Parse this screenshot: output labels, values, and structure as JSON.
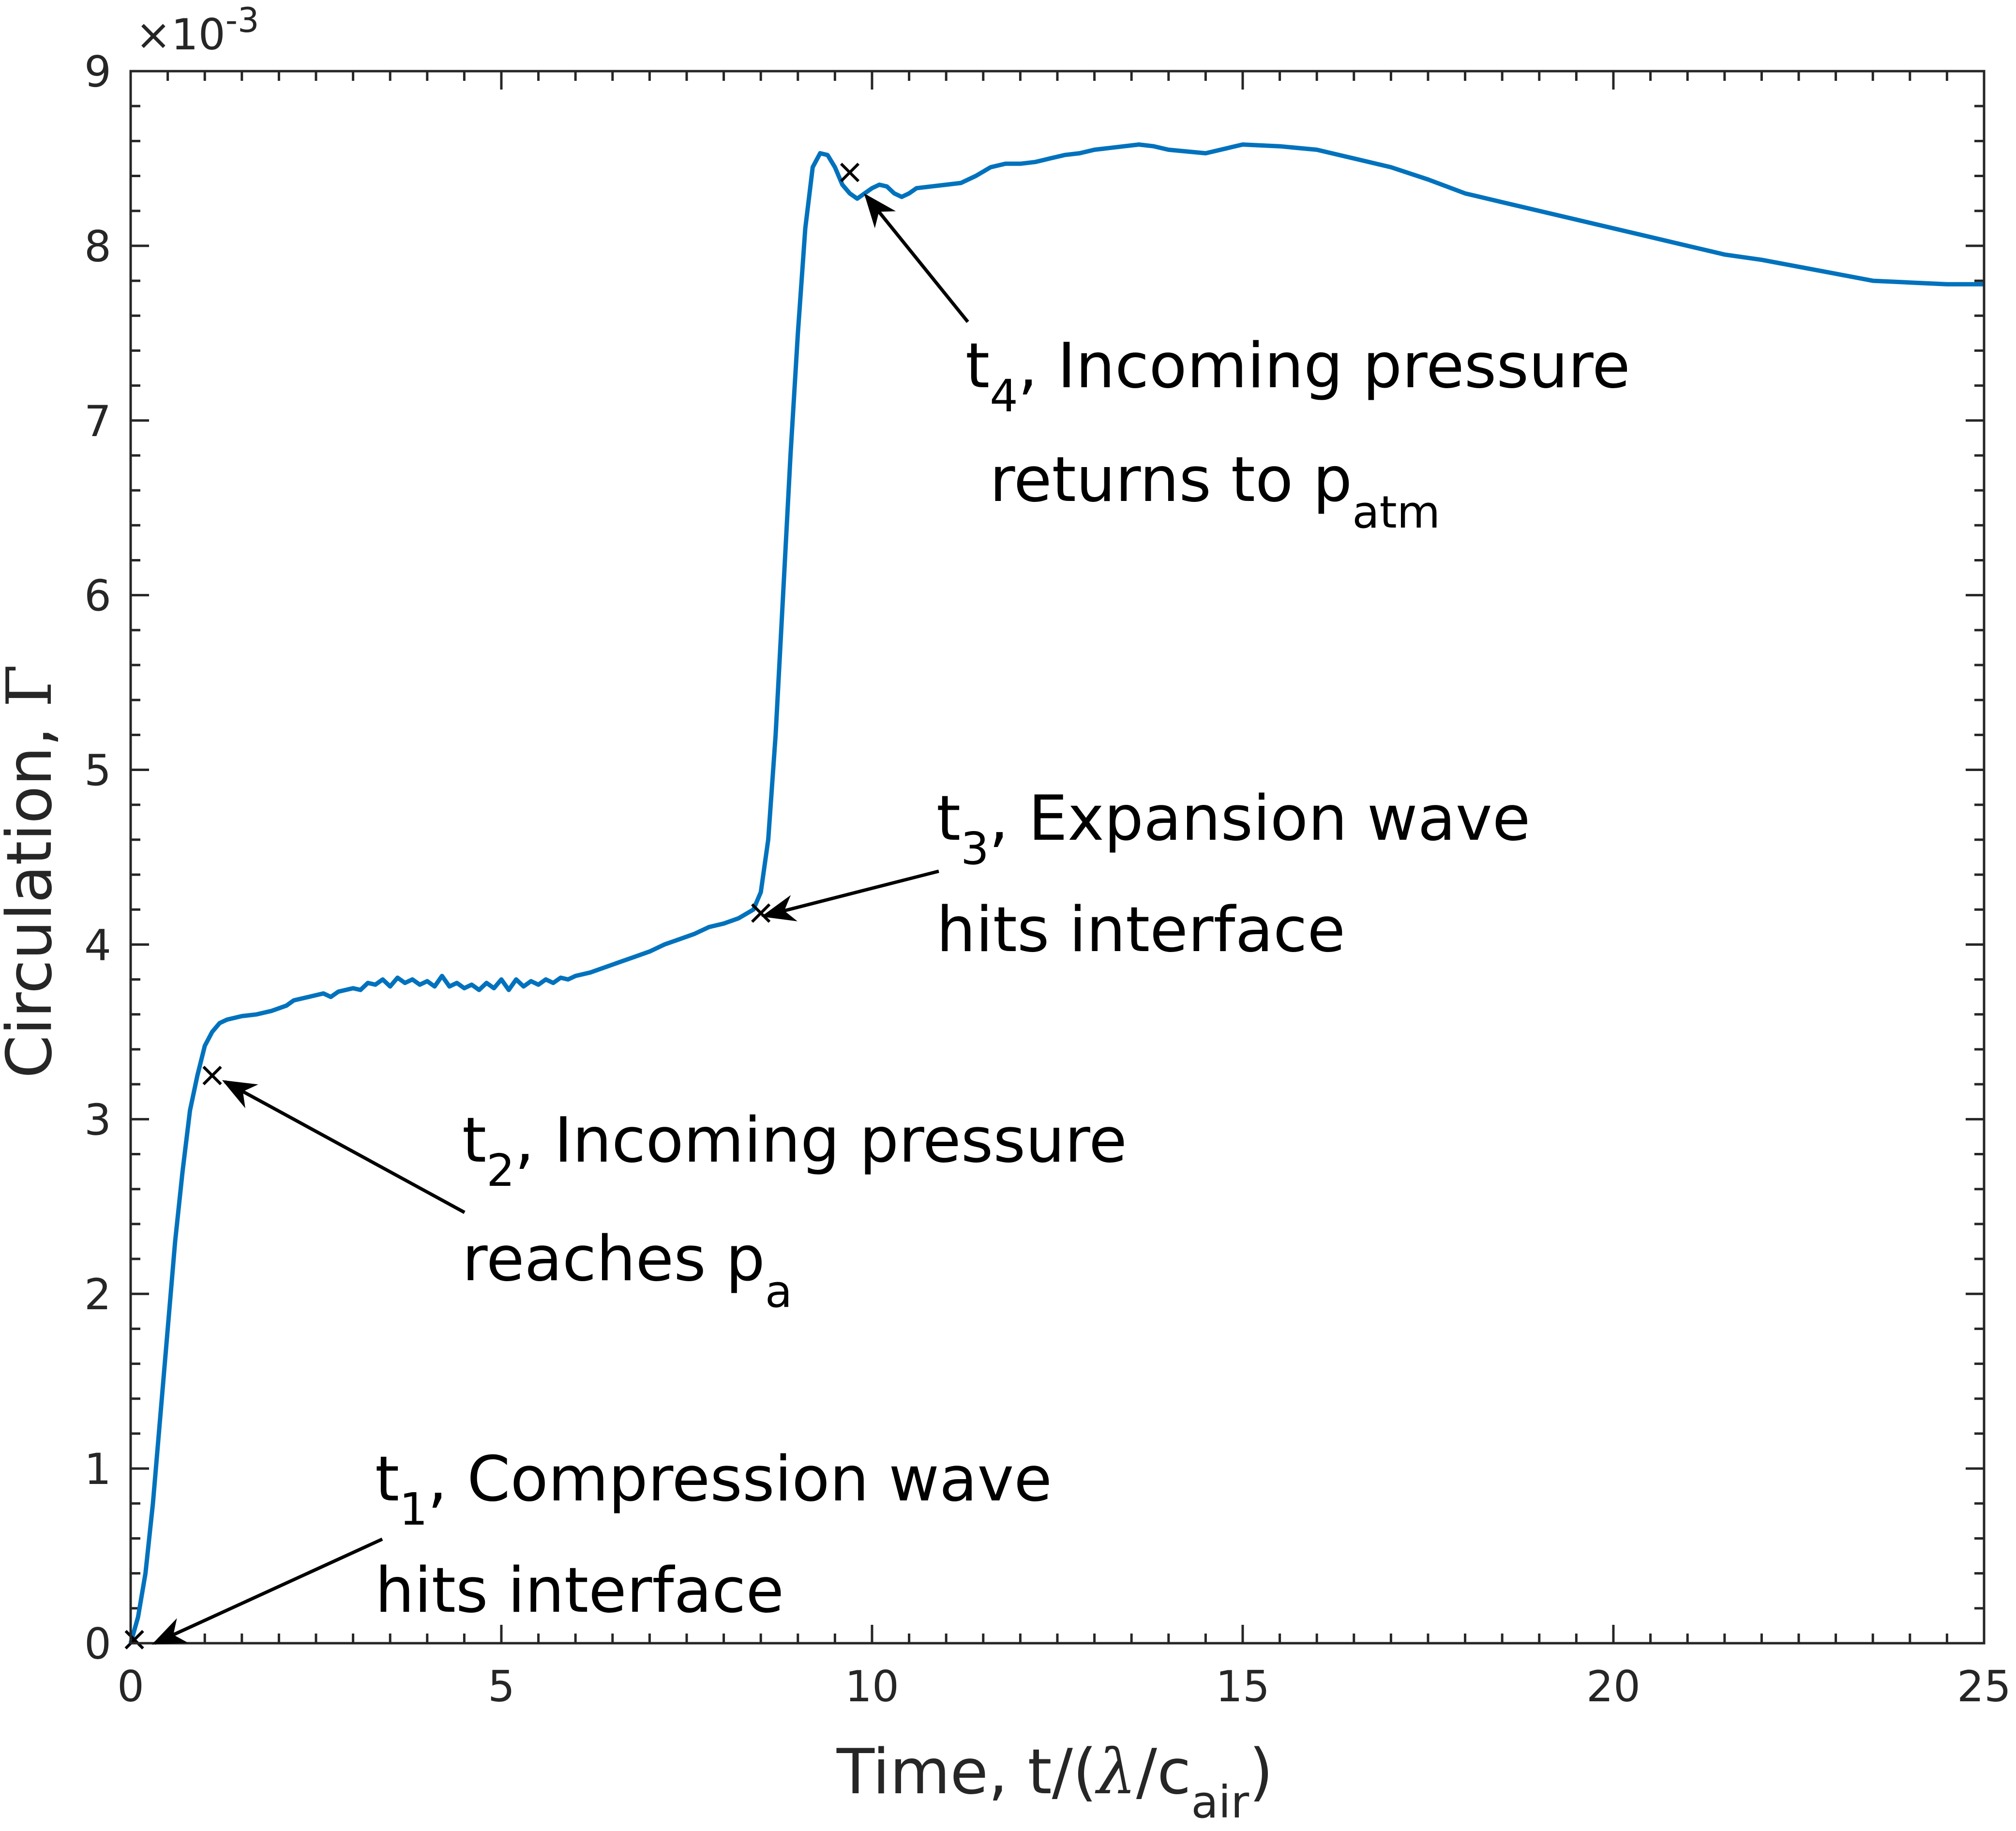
{
  "chart_data": {
    "type": "line",
    "xlabel": {
      "main": "Time, t/(",
      "lambda": "λ",
      "mid": "/c",
      "sub": "air",
      "close": ")"
    },
    "ylabel": {
      "main": "Circulation, ",
      "symbol": "Γ"
    },
    "xlim": [
      0,
      25
    ],
    "ylim": [
      0,
      9
    ],
    "y_multiplier": "×10",
    "y_multiplier_exponent": "-3",
    "xticks": [
      0,
      5,
      10,
      15,
      20,
      25
    ],
    "yticks": [
      0,
      1,
      2,
      3,
      4,
      5,
      6,
      7,
      8,
      9
    ],
    "grid": false,
    "box": true,
    "series": [
      {
        "color": "#0072BD",
        "x": [
          0,
          0.1,
          0.2,
          0.3,
          0.4,
          0.5,
          0.6,
          0.7,
          0.8,
          0.9,
          1.0,
          1.1,
          1.2,
          1.3,
          1.4,
          1.5,
          1.7,
          1.9,
          2.1,
          2.2,
          2.4,
          2.6,
          2.7,
          2.8,
          3.0,
          3.1,
          3.2,
          3.3,
          3.4,
          3.5,
          3.6,
          3.7,
          3.8,
          3.9,
          4.0,
          4.1,
          4.2,
          4.3,
          4.4,
          4.5,
          4.6,
          4.7,
          4.8,
          4.9,
          5.0,
          5.1,
          5.2,
          5.3,
          5.4,
          5.5,
          5.6,
          5.7,
          5.8,
          5.9,
          6.0,
          6.2,
          6.4,
          6.6,
          6.8,
          7.0,
          7.2,
          7.4,
          7.6,
          7.8,
          8.0,
          8.2,
          8.4,
          8.5,
          8.6,
          8.7,
          8.8,
          8.9,
          9.0,
          9.1,
          9.2,
          9.3,
          9.4,
          9.5,
          9.6,
          9.7,
          9.8,
          9.9,
          10.0,
          10.1,
          10.2,
          10.3,
          10.4,
          10.5,
          10.6,
          10.8,
          11.0,
          11.2,
          11.4,
          11.6,
          11.8,
          12.0,
          12.2,
          12.4,
          12.6,
          12.8,
          13.0,
          13.2,
          13.4,
          13.6,
          13.8,
          14.0,
          14.5,
          15.0,
          15.5,
          16.0,
          16.5,
          17.0,
          17.5,
          18.0,
          18.5,
          19.0,
          19.5,
          20.0,
          20.5,
          21.0,
          21.5,
          22.0,
          22.5,
          23.0,
          23.5,
          24.0,
          24.5,
          25.0
        ],
        "y": [
          0,
          0.15,
          0.4,
          0.8,
          1.3,
          1.8,
          2.3,
          2.7,
          3.05,
          3.25,
          3.42,
          3.5,
          3.55,
          3.57,
          3.58,
          3.59,
          3.6,
          3.62,
          3.65,
          3.68,
          3.7,
          3.72,
          3.7,
          3.73,
          3.75,
          3.74,
          3.78,
          3.77,
          3.8,
          3.76,
          3.81,
          3.78,
          3.8,
          3.77,
          3.79,
          3.76,
          3.82,
          3.76,
          3.78,
          3.75,
          3.77,
          3.74,
          3.78,
          3.75,
          3.8,
          3.74,
          3.8,
          3.76,
          3.79,
          3.77,
          3.8,
          3.78,
          3.81,
          3.8,
          3.82,
          3.84,
          3.87,
          3.9,
          3.93,
          3.96,
          4.0,
          4.03,
          4.06,
          4.1,
          4.12,
          4.15,
          4.2,
          4.3,
          4.6,
          5.2,
          6.0,
          6.8,
          7.5,
          8.1,
          8.45,
          8.53,
          8.52,
          8.45,
          8.35,
          8.3,
          8.27,
          8.3,
          8.33,
          8.35,
          8.34,
          8.3,
          8.28,
          8.3,
          8.33,
          8.34,
          8.35,
          8.36,
          8.4,
          8.45,
          8.47,
          8.47,
          8.48,
          8.5,
          8.52,
          8.53,
          8.55,
          8.56,
          8.57,
          8.58,
          8.57,
          8.55,
          8.53,
          8.58,
          8.57,
          8.55,
          8.5,
          8.45,
          8.38,
          8.3,
          8.25,
          8.2,
          8.15,
          8.1,
          8.05,
          8.0,
          7.95,
          7.92,
          7.88,
          7.84,
          7.8,
          7.79,
          7.78,
          7.78
        ]
      }
    ],
    "markers": [
      {
        "x": 0.05,
        "y": 0.02
      },
      {
        "x": 1.1,
        "y": 3.25
      },
      {
        "x": 8.5,
        "y": 4.18
      },
      {
        "x": 9.7,
        "y": 8.42
      }
    ],
    "annotations": [
      {
        "t": "t",
        "sub": "1",
        "rest": ", Compression wave",
        "line2": "hits interface",
        "line2_sub": ""
      },
      {
        "t": "t",
        "sub": "2",
        "rest": ", Incoming pressure",
        "line2": "reaches p",
        "line2_sub": "a"
      },
      {
        "t": "t",
        "sub": "3",
        "rest": ", Expansion wave",
        "line2": "hits interface",
        "line2_sub": ""
      },
      {
        "t": "t",
        "sub": "4",
        "rest": ", Incoming pressure",
        "line2": "returns to p",
        "line2_sub": "atm"
      }
    ]
  }
}
